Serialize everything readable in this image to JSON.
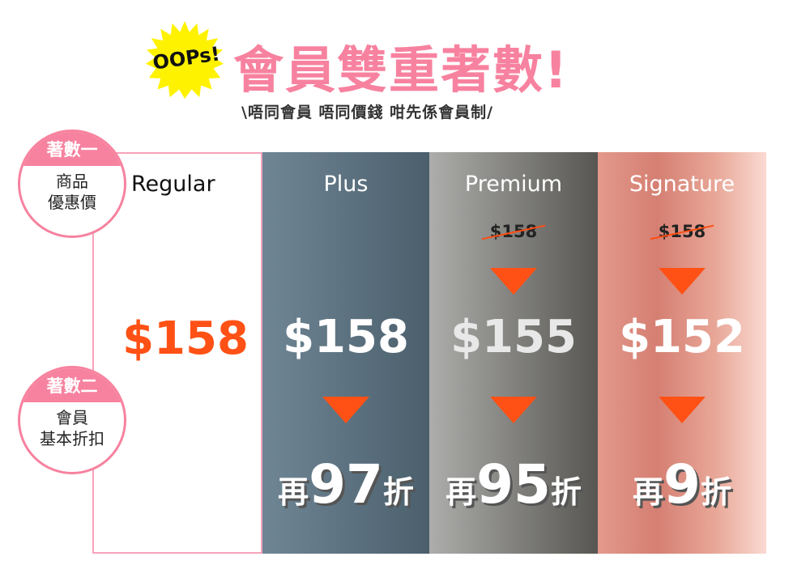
{
  "header": {
    "badge_text": "OOPs!",
    "title": "會員雙重著數!",
    "subtitle": "\\唔同會員 唔同價錢 咁先係會員制/"
  },
  "badges": [
    {
      "head": "著數一",
      "line1": "商品",
      "line2": "優惠價"
    },
    {
      "head": "著數二",
      "line1": "會員",
      "line2": "基本折扣"
    }
  ],
  "tiers": [
    {
      "name": "Regular",
      "original_price": "",
      "price": "$158",
      "discount_prefix": "",
      "discount_value": "",
      "discount_suffix": ""
    },
    {
      "name": "Plus",
      "original_price": "",
      "price": "$158",
      "discount_prefix": "再",
      "discount_value": "97",
      "discount_suffix": "折"
    },
    {
      "name": "Premium",
      "original_price": "$158",
      "price": "$155",
      "discount_prefix": "再",
      "discount_value": "95",
      "discount_suffix": "折"
    },
    {
      "name": "Signature",
      "original_price": "$158",
      "price": "$152",
      "discount_prefix": "再",
      "discount_value": "9",
      "discount_suffix": "折"
    }
  ],
  "colors": {
    "brand_pink": "#f7829f",
    "arrow_orange": "#ff5115",
    "burst_yellow": "#fff200"
  }
}
